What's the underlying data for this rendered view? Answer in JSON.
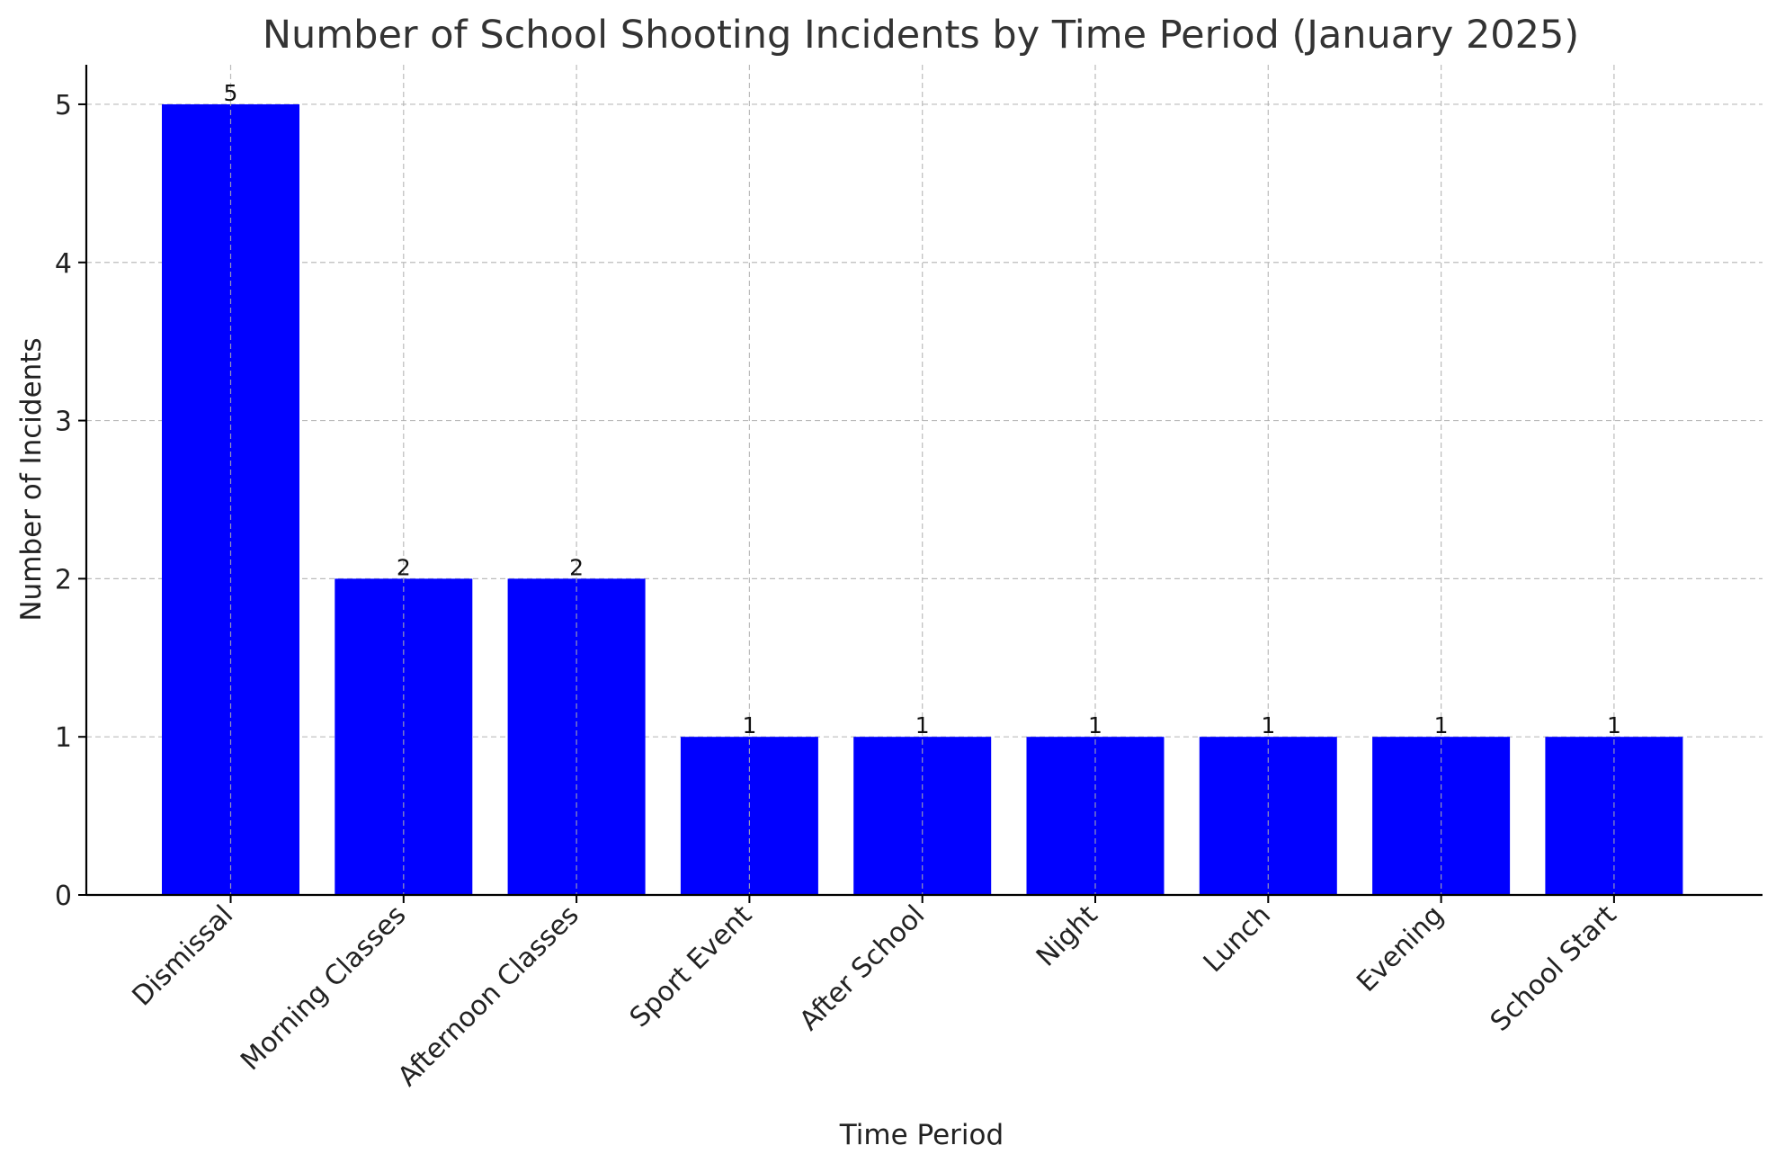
{
  "chart_data": {
    "type": "bar",
    "title": "Number of School Shooting Incidents by Time Period (January 2025)",
    "xlabel": "Time Period",
    "ylabel": "Number of Incidents",
    "categories": [
      "Dismissal",
      "Morning Classes",
      "Afternoon Classes",
      "Sport Event",
      "After School",
      "Night",
      "Lunch",
      "Evening",
      "School Start"
    ],
    "values": [
      5,
      2,
      2,
      1,
      1,
      1,
      1,
      1,
      1
    ],
    "data_labels": [
      "5",
      "2",
      "2",
      "1",
      "1",
      "1",
      "1",
      "1",
      "1"
    ],
    "yticks": [
      0,
      1,
      2,
      3,
      4,
      5
    ],
    "ylim": [
      0,
      5.25
    ],
    "grid": true,
    "bar_color": "#0000ff"
  }
}
